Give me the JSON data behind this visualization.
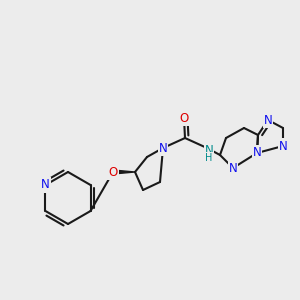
{
  "bg_color": "#ececec",
  "bond_color": "#1a1a1a",
  "bond_lw": 1.5,
  "atom_bg": "#ececec",
  "colors": {
    "C": "#1a1a1a",
    "N": "#1010ee",
    "N_teal": "#008b8b",
    "O": "#dd0000"
  },
  "fontsz": 8.5
}
